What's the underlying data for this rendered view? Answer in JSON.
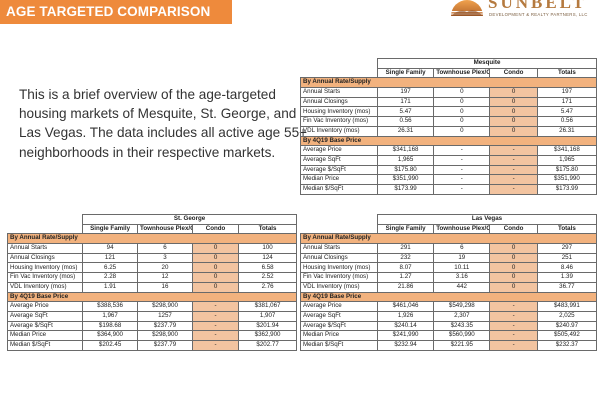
{
  "header": {
    "title": "AGE TARGETED COMPARISON"
  },
  "logo": {
    "name": "SUNBELT",
    "tagline": "DEVELOPMENT & REALTY PARTNERS, LLC",
    "icon": "sunset-icon",
    "color": "#b57a3f"
  },
  "intro": {
    "text": "This is a brief overview of the age-targeted housing markets of Mesquite, St. George, and Las Vegas. The data includes all active age 55+ neighborhoods in their respective markets."
  },
  "colors": {
    "accent": "#ee8a3c",
    "section": "#f2b27e",
    "condo": "#f3c4a0"
  },
  "tables": {
    "mesquite": {
      "location": "Mesquite",
      "columns": [
        "Single Family",
        "Townhouse Plex/Other",
        "Condo",
        "Totals"
      ],
      "section1": "By Annual Rate/Supply",
      "rows1": [
        [
          "Annual Starts",
          "197",
          "0",
          "0",
          "197"
        ],
        [
          "Annual Closings",
          "171",
          "0",
          "0",
          "171"
        ],
        [
          "Housing Inventory (mos)",
          "5.47",
          "0",
          "0",
          "5.47"
        ],
        [
          "Fin Vac Inventory (mos)",
          "0.56",
          "0",
          "0",
          "0.56"
        ],
        [
          "VDL Inventory (mos)",
          "26.31",
          "0",
          "0",
          "26.31"
        ]
      ],
      "section2": "By 4Q19 Base Price",
      "rows2": [
        [
          "Average Price",
          "$341,168",
          "-",
          "-",
          "$341,168"
        ],
        [
          "Average SqFt",
          "1,965",
          "-",
          "-",
          "1,965"
        ],
        [
          "Average $/SqFt",
          "$175.80",
          "-",
          "-",
          "$175.80"
        ],
        [
          "Median Price",
          "$351,990",
          "-",
          "-",
          "$351,990"
        ],
        [
          "Median $/SqFt",
          "$173.99",
          "-",
          "-",
          "$173.99"
        ]
      ]
    },
    "stgeorge": {
      "location": "St. George",
      "columns": [
        "Single Family",
        "Townhouse Plex/Other",
        "Condo",
        "Totals"
      ],
      "section1": "By Annual Rate/Supply",
      "rows1": [
        [
          "Annual Starts",
          "94",
          "6",
          "0",
          "100"
        ],
        [
          "Annual Closings",
          "121",
          "3",
          "0",
          "124"
        ],
        [
          "Housing Inventory (mos)",
          "6.25",
          "20",
          "0",
          "6.58"
        ],
        [
          "Fin Vac Inventory (mos)",
          "2.28",
          "12",
          "0",
          "2.52"
        ],
        [
          "VDL Inventory (mos)",
          "1.91",
          "16",
          "0",
          "2.76"
        ]
      ],
      "section2": "By 4Q19 Base Price",
      "rows2": [
        [
          "Average Price",
          "$388,536",
          "$298,900",
          "-",
          "$381,067"
        ],
        [
          "Average SqFt",
          "1,967",
          "1257",
          "-",
          "1,907"
        ],
        [
          "Average $/SqFt",
          "$198.68",
          "$237.79",
          "-",
          "$201.94"
        ],
        [
          "Median Price",
          "$364,900",
          "$298,900",
          "-",
          "$362,900"
        ],
        [
          "Median $/SqFt",
          "$202.45",
          "$237.79",
          "-",
          "$202.77"
        ]
      ]
    },
    "lasvegas": {
      "location": "Las Vegas",
      "columns": [
        "Single Family",
        "Townhouse Plex/Other",
        "Condo",
        "Totals"
      ],
      "section1": "By Annual Rate/Supply",
      "rows1": [
        [
          "Annual Starts",
          "291",
          "6",
          "0",
          "297"
        ],
        [
          "Annual Closings",
          "232",
          "19",
          "0",
          "251"
        ],
        [
          "Housing Inventory (mos)",
          "8.07",
          "10.11",
          "0",
          "8.46"
        ],
        [
          "Fin Vac Inventory (mos)",
          "1.27",
          "3.16",
          "0",
          "1.39"
        ],
        [
          "VDL Inventory (mos)",
          "21.86",
          "442",
          "0",
          "36.77"
        ]
      ],
      "section2": "By 4Q19 Base Price",
      "rows2": [
        [
          "Average Price",
          "$461,046",
          "$549,298",
          "-",
          "$483,991"
        ],
        [
          "Average SqFt",
          "1,926",
          "2,307",
          "-",
          "2,025"
        ],
        [
          "Average $/SqFt",
          "$240.14",
          "$243.35",
          "-",
          "$240.97"
        ],
        [
          "Median Price",
          "$241,990",
          "$560,990",
          "-",
          "$505,492"
        ],
        [
          "Median $/SqFt",
          "$232.94",
          "$221.95",
          "-",
          "$232.37"
        ]
      ]
    }
  }
}
